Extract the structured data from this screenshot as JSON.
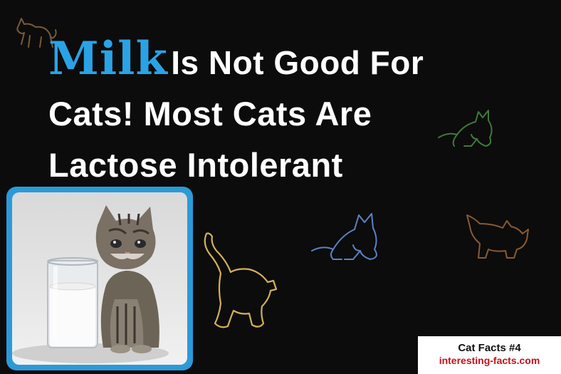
{
  "headline": {
    "highlight": "Milk",
    "line1_rest": "Is Not Good For",
    "line2": "Cats! Most Cats Are",
    "line3": "Lactose Intolerant"
  },
  "badge": {
    "title": "Cat Facts #4",
    "site": "interesting-facts.com"
  },
  "colors": {
    "background": "#0c0c0c",
    "highlight": "#2aa3e6",
    "frame": "#2b9ad8",
    "badge_text_accent": "#c8101a"
  },
  "decorations": {
    "cat_outlines": [
      "brown-cat-outline-icon",
      "green-cat-outline-icon",
      "blue-cat-outline-icon",
      "orange-cat-outline-icon",
      "yellow-cat-outline-icon"
    ]
  }
}
